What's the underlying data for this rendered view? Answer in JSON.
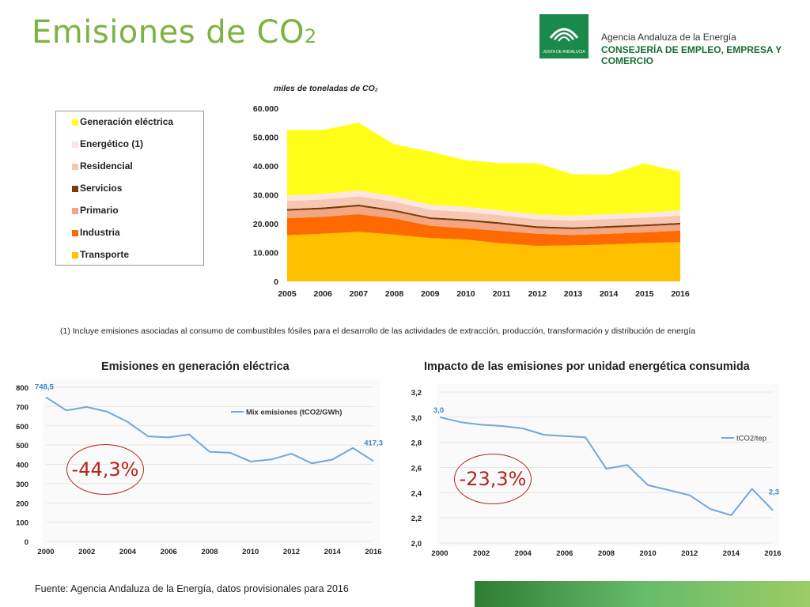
{
  "header": {
    "title_main": "Emisiones de CO",
    "title_sub": "2",
    "logo_caption": "JUNTA DE ANDALUCIA",
    "agency": "Agencia Andaluza de la Energía",
    "ministry": "CONSEJERÍA DE EMPLEO, EMPRESA Y COMERCIO"
  },
  "footnote": "(1) Incluye emisiones asociadas al consumo de combustibles fósiles para el desarrollo de las actividades de extracción, producción, transformación y distribución de energía",
  "source": "Fuente: Agencia Andaluza de la Energía, datos provisionales para 2016",
  "chart_data": [
    {
      "type": "area",
      "stacked": true,
      "ylabel": "miles de toneladas de CO₂",
      "x": [
        "2005",
        "2006",
        "2007",
        "2008",
        "2009",
        "2010",
        "2011",
        "2012",
        "2013",
        "2014",
        "2015",
        "2016"
      ],
      "ylim": [
        0,
        60000
      ],
      "yticks": [
        0,
        10000,
        20000,
        30000,
        40000,
        50000,
        60000
      ],
      "ytick_labels": [
        "0",
        "10.000",
        "20.000",
        "30.000",
        "40.000",
        "50.000",
        "60.000"
      ],
      "legend_placement": "left",
      "series": [
        {
          "name": "Transporte",
          "color": "#ffc000",
          "values": [
            16000,
            16500,
            17200,
            16200,
            15000,
            14500,
            13200,
            12300,
            12500,
            12800,
            13300,
            13600
          ]
        },
        {
          "name": "Industria",
          "color": "#ff6a00",
          "values": [
            5900,
            5900,
            6100,
            5600,
            4300,
            3900,
            4300,
            4200,
            3600,
            3700,
            3700,
            4000
          ]
        },
        {
          "name": "Primario",
          "color": "#f4a582",
          "values": [
            2600,
            2600,
            2700,
            2400,
            2300,
            2500,
            2300,
            2000,
            2000,
            2100,
            2100,
            2100
          ]
        },
        {
          "name": "Servicios",
          "color": "#7a3b0a",
          "values": [
            600,
            600,
            600,
            600,
            600,
            600,
            600,
            600,
            600,
            600,
            600,
            600
          ]
        },
        {
          "name": "Residencial",
          "color": "#f6c8b2",
          "values": [
            2800,
            2800,
            2900,
            2800,
            2600,
            2600,
            2500,
            2400,
            2400,
            2400,
            2400,
            2500
          ]
        },
        {
          "name": "Energético (1)",
          "color": "#fde6e0",
          "values": [
            1900,
            1900,
            2000,
            1900,
            1800,
            1800,
            1700,
            1700,
            1700,
            1700,
            1700,
            1800
          ]
        },
        {
          "name": "Generación eléctrica",
          "color": "#ffff1a",
          "values": [
            22700,
            22200,
            23500,
            18000,
            18400,
            16100,
            16400,
            17800,
            14300,
            13700,
            17100,
            13400
          ]
        }
      ]
    },
    {
      "type": "line",
      "title": "Emisiones en generación eléctrica",
      "x": [
        2000,
        2001,
        2002,
        2003,
        2004,
        2005,
        2006,
        2007,
        2008,
        2009,
        2010,
        2011,
        2012,
        2013,
        2014,
        2015,
        2016
      ],
      "xtick_labels": [
        "2000",
        "2002",
        "2004",
        "2006",
        "2008",
        "2010",
        "2012",
        "2014",
        "2016"
      ],
      "ylim": [
        0,
        800
      ],
      "yticks": [
        0,
        100,
        200,
        300,
        400,
        500,
        600,
        700,
        800
      ],
      "ytick_labels": [
        "0",
        "100",
        "200",
        "300",
        "400",
        "500",
        "600",
        "700",
        "800"
      ],
      "series": [
        {
          "name": "Mix emisiones (tCO2/GWh)",
          "color": "#6fa8dc",
          "values": [
            748.5,
            680,
            698,
            673,
            620,
            545,
            540,
            555,
            465,
            460,
            415,
            425,
            455,
            405,
            425,
            485,
            417.3
          ]
        }
      ],
      "data_labels": [
        "748,5",
        "417,3"
      ],
      "callout": "-44,3%",
      "legend_placement": "top-right",
      "grid": true
    },
    {
      "type": "line",
      "title": "Impacto  de las emisiones por unidad energética consumida",
      "x": [
        2000,
        2001,
        2002,
        2003,
        2004,
        2005,
        2006,
        2007,
        2008,
        2009,
        2010,
        2011,
        2012,
        2013,
        2014,
        2015,
        2016
      ],
      "xtick_labels": [
        "2000",
        "2002",
        "2004",
        "2006",
        "2008",
        "2010",
        "2012",
        "2014",
        "2016"
      ],
      "ylim": [
        2.0,
        3.2
      ],
      "yticks": [
        2.0,
        2.2,
        2.4,
        2.6,
        2.8,
        3.0,
        3.2
      ],
      "ytick_labels": [
        "2,0",
        "2,2",
        "2,4",
        "2,6",
        "2,8",
        "3,0",
        "3,2"
      ],
      "series": [
        {
          "name": "tCO2/tep",
          "color": "#6fa8dc",
          "values": [
            3.0,
            2.96,
            2.94,
            2.93,
            2.91,
            2.86,
            2.85,
            2.84,
            2.59,
            2.62,
            2.46,
            2.42,
            2.38,
            2.27,
            2.22,
            2.43,
            2.26
          ]
        }
      ],
      "data_labels": [
        "3,0",
        "2,3"
      ],
      "callout": "-23,3%",
      "legend_placement": "top-right",
      "grid": true
    }
  ]
}
